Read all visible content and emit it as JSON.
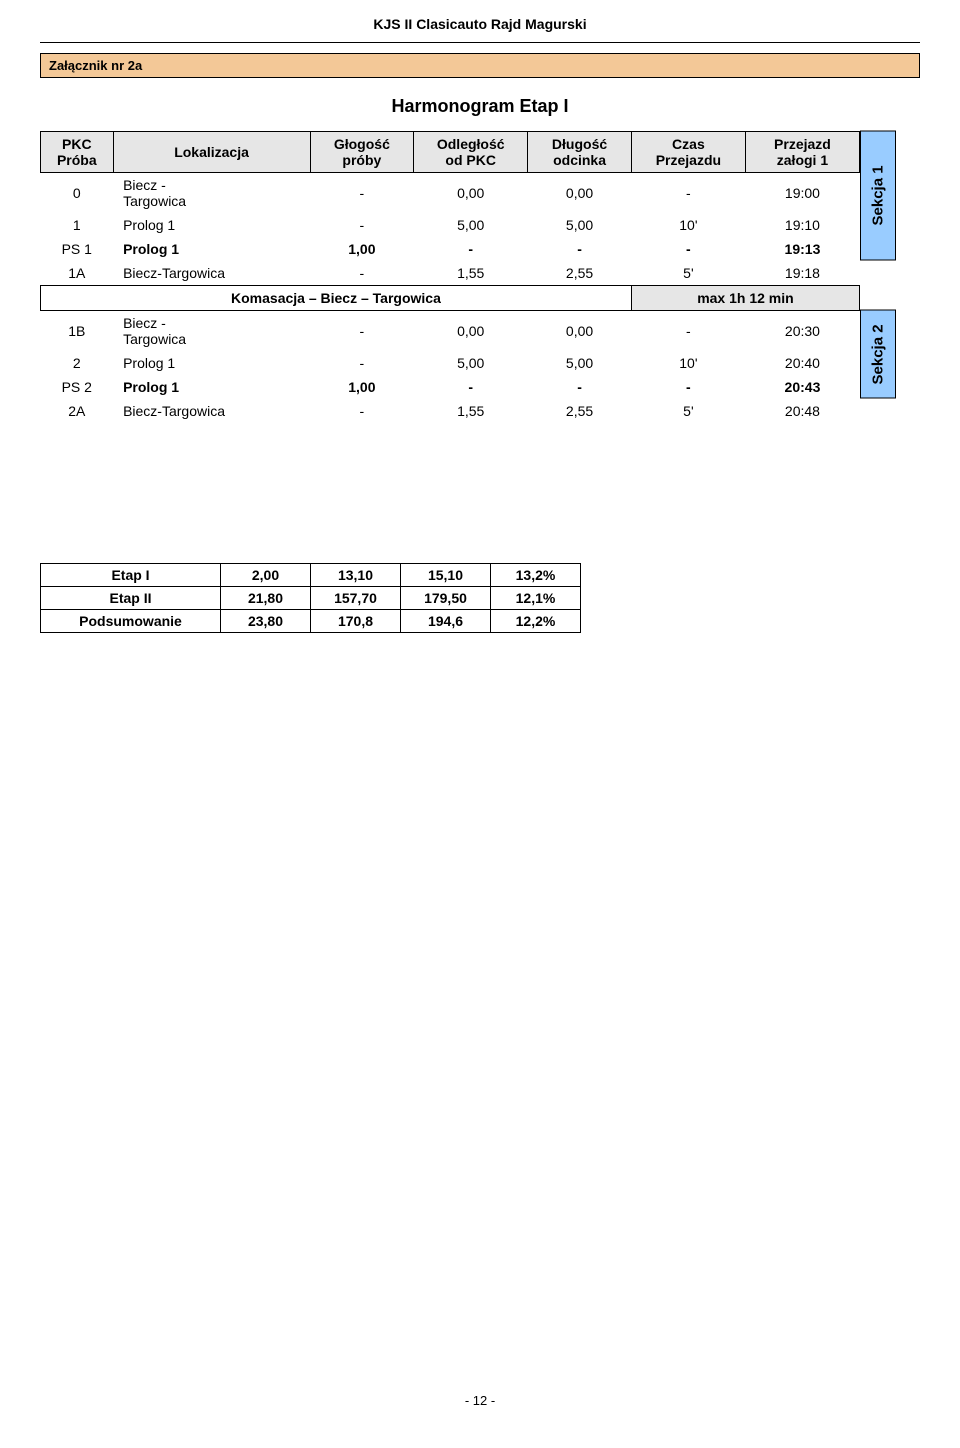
{
  "doc_header": "KJS II Clasicauto Rajd Magurski",
  "attachment_label": "Załącznik nr 2a",
  "schedule_title": "Harmonogram Etap I",
  "columns": {
    "pkc": "PKC\nPróba",
    "lok": "Lokalizacja",
    "glug": "Głogość\npróby",
    "odl": "Odległość\nod PKC",
    "dlug": "Długość\nodcinka",
    "czas": "Czas\nPrzejazdu",
    "prze": "Przejazd\nzałogi 1"
  },
  "rows_s1": [
    {
      "pkc": "0",
      "lok": "Biecz -\nTargowica",
      "a": "-",
      "b": "0,00",
      "c": "0,00",
      "d": "-",
      "e": "19:00"
    },
    {
      "pkc": "1",
      "lok": "Prolog 1",
      "a": "-",
      "b": "5,00",
      "c": "5,00",
      "d": "10'",
      "e": "19:10"
    },
    {
      "pkc": "PS 1",
      "lok": "Prolog 1",
      "a": "1,00",
      "b": "-",
      "c": "-",
      "d": "-",
      "e": "19:13",
      "bold": true
    },
    {
      "pkc": "1A",
      "lok": "Biecz-Targowica",
      "a": "-",
      "b": "1,55",
      "c": "2,55",
      "d": "5'",
      "e": "19:18"
    }
  ],
  "komasacja": {
    "label": "Komasacja – Biecz – Targowica",
    "max": "max 1h 12 min"
  },
  "rows_s2": [
    {
      "pkc": "1B",
      "lok": "Biecz -\nTargowica",
      "a": "-",
      "b": "0,00",
      "c": "0,00",
      "d": "-",
      "e": "20:30"
    },
    {
      "pkc": "2",
      "lok": "Prolog 1",
      "a": "-",
      "b": "5,00",
      "c": "5,00",
      "d": "10'",
      "e": "20:40"
    },
    {
      "pkc": "PS 2",
      "lok": "Prolog 1",
      "a": "1,00",
      "b": "-",
      "c": "-",
      "d": "-",
      "e": "20:43",
      "bold": true
    },
    {
      "pkc": "2A",
      "lok": "Biecz-Targowica",
      "a": "-",
      "b": "1,55",
      "c": "2,55",
      "d": "5'",
      "e": "20:48"
    }
  ],
  "sekcja1_label": "Sekcja 1",
  "sekcja2_label": "Sekcja 2",
  "summary": {
    "rows": [
      {
        "label": "Etap I",
        "a": "2,00",
        "b": "13,10",
        "c": "15,10",
        "d": "13,2%"
      },
      {
        "label": "Etap II",
        "a": "21,80",
        "b": "157,70",
        "c": "179,50",
        "d": "12,1%"
      },
      {
        "label": "Podsumowanie",
        "a": "23,80",
        "b": "170,8",
        "c": "194,6",
        "d": "12,2%"
      }
    ]
  },
  "page_number": "- 12 -",
  "colors": {
    "header_bg": "#e6e6e6",
    "attachment_bg": "#f3c897",
    "sekcja_bg": "#99ccff"
  }
}
